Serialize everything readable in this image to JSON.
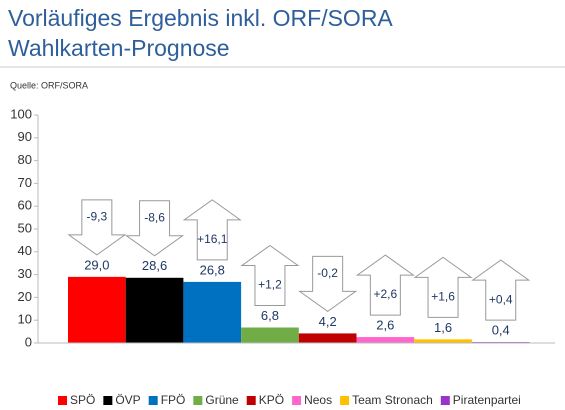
{
  "chart_data": {
    "type": "bar",
    "title": [
      "Vorläufiges Ergebnis inkl. ORF/SORA",
      "Wahlkarten-Prognose"
    ],
    "source": "Quelle: ORF/SORA",
    "categories": [
      "SPÖ",
      "ÖVP",
      "FPÖ",
      "Grüne",
      "KPÖ",
      "Neos",
      "Team Stronach",
      "Piratenpartei"
    ],
    "values": [
      29.0,
      28.6,
      26.8,
      6.8,
      4.2,
      2.6,
      1.6,
      0.4
    ],
    "value_labels": [
      "29,0",
      "28,6",
      "26,8",
      "6,8",
      "4,2",
      "2,6",
      "1,6",
      "0,4"
    ],
    "colors": [
      "#ff0000",
      "#000000",
      "#0070c0",
      "#70ad47",
      "#c00000",
      "#ff66cc",
      "#ffc000",
      "#9933cc"
    ],
    "changes": [
      -9.3,
      -8.6,
      16.1,
      1.2,
      -0.2,
      2.6,
      1.6,
      0.4
    ],
    "change_labels": [
      "-9,3",
      "-8,6",
      "+16,1",
      "+1,2",
      "-0,2",
      "+2,6",
      "+1,6",
      "+0,4"
    ],
    "ylim": [
      0,
      100
    ],
    "yticks": [
      0,
      10,
      20,
      30,
      40,
      50,
      60,
      70,
      80,
      90,
      100
    ],
    "grid": false,
    "legend": "bottom"
  }
}
